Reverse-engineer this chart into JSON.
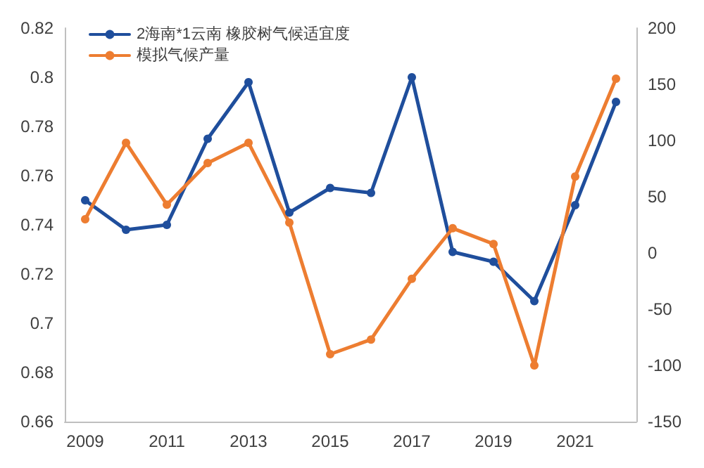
{
  "chart_data": {
    "type": "line",
    "x": [
      2009,
      2010,
      2011,
      2012,
      2013,
      2014,
      2015,
      2016,
      2017,
      2018,
      2019,
      2020,
      2021,
      2022
    ],
    "series": [
      {
        "name": "2海南*1云南 橡胶树气候适宜度",
        "color": "#1f4e9c",
        "values": [
          0.75,
          0.738,
          0.74,
          0.775,
          0.798,
          0.745,
          0.755,
          0.753,
          0.8,
          0.729,
          0.725,
          0.709,
          0.748,
          0.79
        ]
      },
      {
        "name": "模拟气候产量",
        "color": "#ed7d31",
        "axis": "y2",
        "values": [
          30,
          98,
          43,
          80,
          98,
          27,
          -90,
          -77,
          -23,
          22,
          8,
          -100,
          68,
          155
        ]
      }
    ],
    "xlim": [
      2008.5,
      2022.5
    ],
    "xticks": [
      2009,
      2011,
      2013,
      2015,
      2017,
      2019,
      2021
    ],
    "ylim": [
      0.66,
      0.82
    ],
    "yticks": [
      0.66,
      0.68,
      0.7,
      0.72,
      0.74,
      0.76,
      0.78,
      0.8,
      0.82
    ],
    "y2lim": [
      -150,
      200
    ],
    "y2ticks": [
      -150,
      -100,
      -50,
      0,
      50,
      100,
      150,
      200
    ],
    "grid": false,
    "legend": "top left",
    "marker": "circle",
    "line_style": "solid"
  }
}
